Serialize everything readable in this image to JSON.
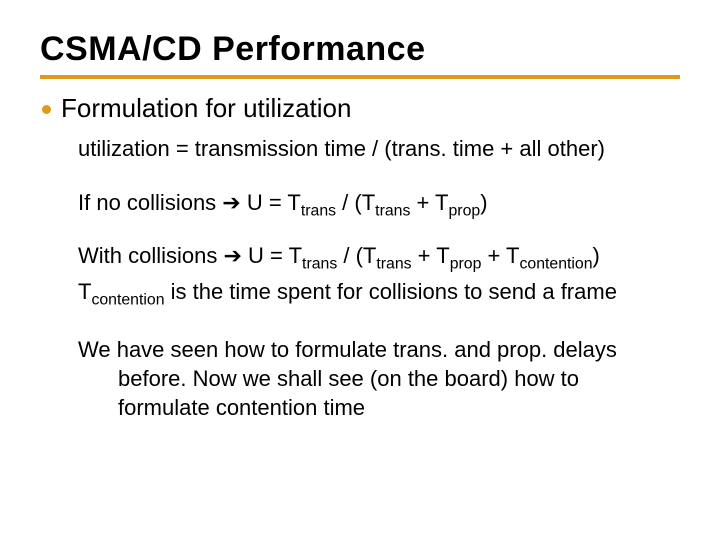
{
  "colors": {
    "accent": "#e09a1a",
    "text": "#000000",
    "background": "#ffffff"
  },
  "title": "CSMA/CD Performance",
  "bullet": "Formulation for utilization",
  "eq1": "utilization = transmission time / (trans. time + all other)",
  "eq2": {
    "pre": "If no collisions ",
    "post": " U = T",
    "s1": "trans",
    "mid": " / (T",
    "s2": "trans",
    "mid2": " + T",
    "s3": "prop",
    "end": ")"
  },
  "eq3": {
    "pre": "With collisions ",
    "post": " U = T",
    "s1": "trans",
    "mid": " / (T",
    "s2": "trans",
    "mid2": " + T",
    "s3": "prop",
    "mid3": " + T",
    "s4": "contention",
    "end": ")"
  },
  "eq4": {
    "t": "T",
    "sub": "contention",
    "rest": " is the time spent for collisions to send a frame"
  },
  "closing": {
    "l1": "We have seen how to formulate trans. and prop. delays",
    "l2": "before. Now we shall see (on the board) how to",
    "l3": "formulate contention time"
  },
  "arrow_glyph": "➔"
}
